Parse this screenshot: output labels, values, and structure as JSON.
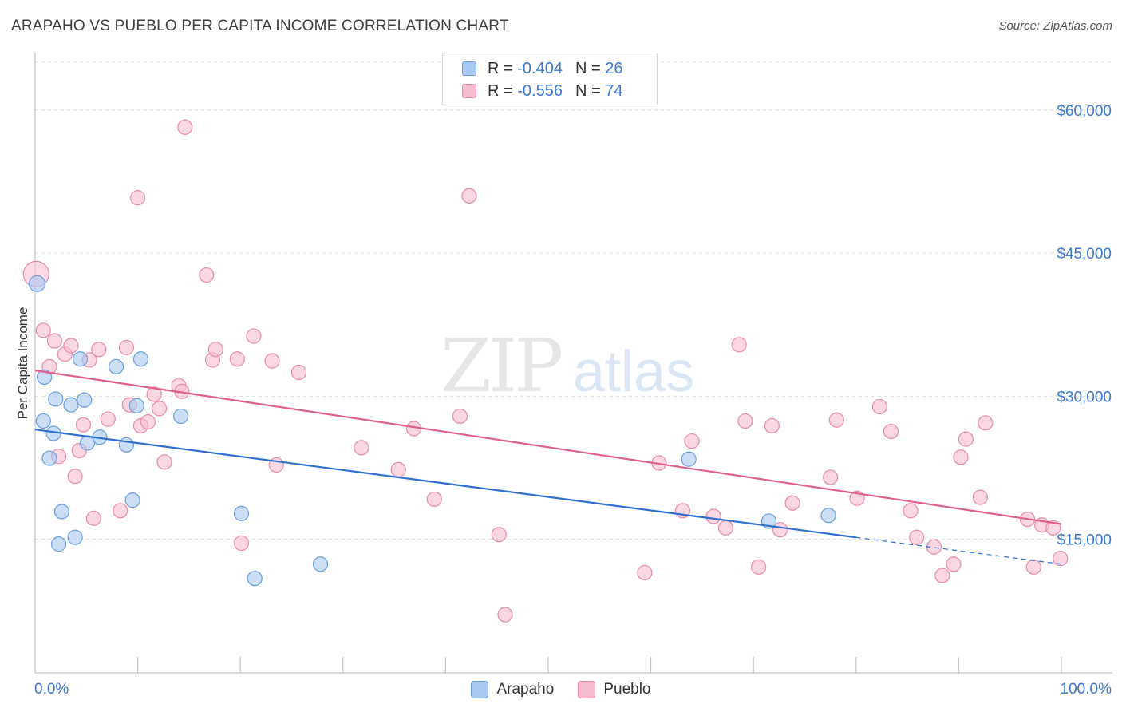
{
  "header": {
    "title": "ARAPAHO VS PUEBLO PER CAPITA INCOME CORRELATION CHART",
    "source": "Source: ZipAtlas.com"
  },
  "legend": {
    "rows": [
      {
        "r_label": "R =",
        "r_value": "-0.404",
        "n_label": "N =",
        "n_value": "26"
      },
      {
        "r_label": "R =",
        "r_value": "-0.556",
        "n_label": "N =",
        "n_value": "74"
      }
    ]
  },
  "bottom_legend": {
    "arapaho": "Arapaho",
    "pueblo": "Pueblo"
  },
  "watermark": {
    "zip": "ZIP",
    "atlas": "atlas"
  },
  "colors": {
    "arapaho_fill": "#a9c8f0",
    "arapaho_stroke": "#6a9ee0",
    "arapaho_line": "#2e6fcf",
    "pueblo_fill": "#f7bcd0",
    "pueblo_stroke": "#e88aaa",
    "pueblo_line": "#e0608a",
    "axis_text": "#3b78d0",
    "grid": "#dddddd"
  },
  "chart_data": {
    "type": "scatter",
    "title": "ARAPAHO VS PUEBLO PER CAPITA INCOME CORRELATION CHART",
    "xlabel": "",
    "ylabel": "Per Capita Income",
    "xlim": [
      0,
      100
    ],
    "ylim": [
      1000,
      65000
    ],
    "x_tick_labels": [
      "0.0%",
      "100.0%"
    ],
    "y_ticks": [
      15000,
      30000,
      45000,
      60000
    ],
    "y_tick_labels": [
      "$15,000",
      "$30,000",
      "$45,000",
      "$60,000"
    ],
    "legend_position": "top-center",
    "series": [
      {
        "name": "Arapaho",
        "r": -0.404,
        "n": 26,
        "trend": {
          "x0": 0,
          "y0": 26500,
          "x1": 80,
          "y1": 15200,
          "dashed_to_x": 100,
          "dashed_to_y": 12400
        },
        "points": [
          [
            0.2,
            41800
          ],
          [
            0.8,
            27400
          ],
          [
            0.9,
            32000
          ],
          [
            1.4,
            23500
          ],
          [
            1.8,
            26100
          ],
          [
            2.0,
            29700
          ],
          [
            2.3,
            14500
          ],
          [
            2.6,
            17900
          ],
          [
            3.5,
            29100
          ],
          [
            3.9,
            15200
          ],
          [
            4.4,
            33900
          ],
          [
            4.8,
            29600
          ],
          [
            5.1,
            25100
          ],
          [
            6.3,
            25700
          ],
          [
            7.9,
            33100
          ],
          [
            8.9,
            24900
          ],
          [
            9.5,
            19100
          ],
          [
            9.9,
            29000
          ],
          [
            10.3,
            33900
          ],
          [
            14.2,
            27900
          ],
          [
            20.1,
            17700
          ],
          [
            21.4,
            10900
          ],
          [
            27.8,
            12400
          ],
          [
            63.7,
            23400
          ],
          [
            71.5,
            16900
          ],
          [
            77.3,
            17500
          ]
        ]
      },
      {
        "name": "Pueblo",
        "r": -0.556,
        "n": 74,
        "trend": {
          "x0": 0,
          "y0": 32700,
          "x1": 100,
          "y1": 16600
        },
        "points": [
          [
            0.1,
            42800
          ],
          [
            0.8,
            36900
          ],
          [
            1.4,
            33100
          ],
          [
            1.9,
            35800
          ],
          [
            2.3,
            23700
          ],
          [
            2.9,
            34400
          ],
          [
            3.5,
            35300
          ],
          [
            3.9,
            21600
          ],
          [
            4.3,
            24300
          ],
          [
            4.7,
            27000
          ],
          [
            5.3,
            33800
          ],
          [
            5.7,
            17200
          ],
          [
            6.2,
            34900
          ],
          [
            7.1,
            27600
          ],
          [
            8.3,
            18000
          ],
          [
            8.9,
            35100
          ],
          [
            9.2,
            29100
          ],
          [
            10.0,
            50800
          ],
          [
            10.3,
            26900
          ],
          [
            11.0,
            27300
          ],
          [
            11.6,
            30200
          ],
          [
            12.1,
            28700
          ],
          [
            12.6,
            23100
          ],
          [
            14.0,
            31100
          ],
          [
            14.3,
            30500
          ],
          [
            14.6,
            58200
          ],
          [
            16.7,
            42700
          ],
          [
            17.3,
            33800
          ],
          [
            17.6,
            34900
          ],
          [
            19.7,
            33900
          ],
          [
            20.1,
            14600
          ],
          [
            21.3,
            36300
          ],
          [
            23.1,
            33700
          ],
          [
            23.5,
            22800
          ],
          [
            25.7,
            32500
          ],
          [
            31.8,
            24600
          ],
          [
            35.4,
            22300
          ],
          [
            36.9,
            26600
          ],
          [
            38.9,
            19200
          ],
          [
            41.4,
            27900
          ],
          [
            42.3,
            51000
          ],
          [
            45.2,
            15500
          ],
          [
            45.8,
            7100
          ],
          [
            59.4,
            11500
          ],
          [
            60.8,
            23000
          ],
          [
            63.1,
            18000
          ],
          [
            64.0,
            25300
          ],
          [
            66.1,
            17400
          ],
          [
            67.3,
            16200
          ],
          [
            68.6,
            35400
          ],
          [
            69.2,
            27400
          ],
          [
            70.5,
            12100
          ],
          [
            71.8,
            26900
          ],
          [
            72.6,
            16000
          ],
          [
            73.8,
            18800
          ],
          [
            77.5,
            21500
          ],
          [
            78.1,
            27500
          ],
          [
            80.1,
            19300
          ],
          [
            82.3,
            28900
          ],
          [
            83.4,
            26300
          ],
          [
            85.3,
            18000
          ],
          [
            85.9,
            15200
          ],
          [
            87.6,
            14200
          ],
          [
            88.4,
            11200
          ],
          [
            89.5,
            12400
          ],
          [
            90.2,
            23600
          ],
          [
            90.7,
            25500
          ],
          [
            92.1,
            19400
          ],
          [
            92.6,
            27200
          ],
          [
            96.7,
            17100
          ],
          [
            97.3,
            12100
          ],
          [
            98.1,
            16500
          ],
          [
            99.2,
            16200
          ],
          [
            99.9,
            13000
          ]
        ]
      }
    ]
  }
}
